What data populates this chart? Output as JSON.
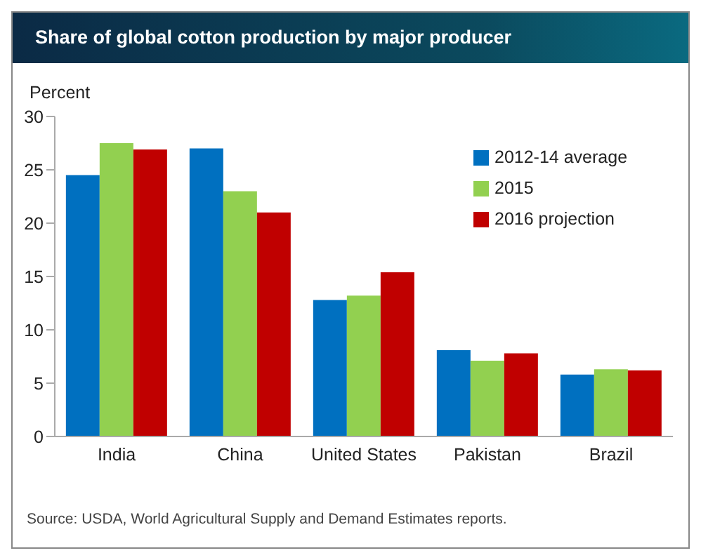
{
  "chart_data": {
    "type": "bar",
    "title": "Share of global cotton production by major producer",
    "ylabel": "Percent",
    "categories": [
      "India",
      "China",
      "United States",
      "Pakistan",
      "Brazil"
    ],
    "series": [
      {
        "name": "2012-14 average",
        "color": "#0070c0",
        "values": [
          24.5,
          27.0,
          12.8,
          8.1,
          5.8
        ]
      },
      {
        "name": "2015",
        "color": "#92d050",
        "values": [
          27.5,
          23.0,
          13.2,
          7.1,
          6.3
        ]
      },
      {
        "name": "2016 projection",
        "color": "#c00000",
        "values": [
          26.9,
          21.0,
          15.4,
          7.8,
          6.2
        ]
      }
    ],
    "ylim": [
      0,
      30
    ],
    "yticks": [
      0,
      5,
      10,
      15,
      20,
      25,
      30
    ],
    "grid": false,
    "legend": "top right",
    "annotations": [
      "Source: USDA, World Agricultural Supply and Demand Estimates reports."
    ]
  }
}
